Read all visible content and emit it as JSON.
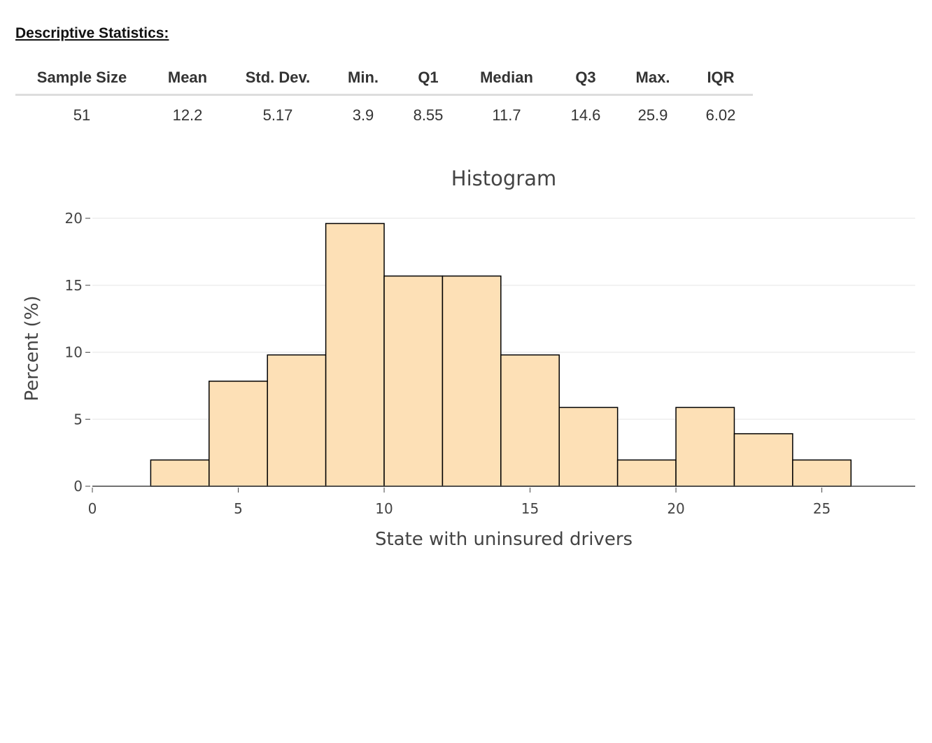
{
  "stats": {
    "title": "Descriptive Statistics:",
    "headers": [
      "Sample Size",
      "Mean",
      "Std. Dev.",
      "Min.",
      "Q1",
      "Median",
      "Q3",
      "Max.",
      "IQR"
    ],
    "values": [
      "51",
      "12.2",
      "5.17",
      "3.9",
      "8.55",
      "11.7",
      "14.6",
      "25.9",
      "6.02"
    ]
  },
  "chart_data": {
    "type": "bar",
    "title": "Histogram",
    "xlabel": "State with uninsured drivers",
    "ylabel": "Percent (%)",
    "bin_edges": [
      2,
      4,
      6,
      8,
      10,
      12,
      14,
      16,
      18,
      20,
      22,
      24,
      26
    ],
    "values": [
      1.96,
      7.84,
      9.8,
      19.61,
      15.69,
      15.69,
      9.8,
      5.88,
      1.96,
      5.88,
      3.92,
      1.96
    ],
    "xlim": [
      0,
      28.2
    ],
    "ylim": [
      0,
      20.3
    ],
    "xticks": [
      0,
      5,
      10,
      15,
      20,
      25
    ],
    "yticks": [
      0,
      5,
      10,
      15,
      20
    ],
    "grid": true,
    "bar_color": "#fde0b6",
    "bar_edge": "#000000"
  }
}
